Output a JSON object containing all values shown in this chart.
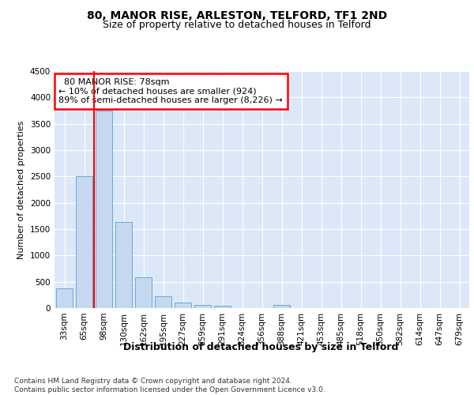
{
  "title_line1": "80, MANOR RISE, ARLESTON, TELFORD, TF1 2ND",
  "title_line2": "Size of property relative to detached houses in Telford",
  "xlabel": "Distribution of detached houses by size in Telford",
  "ylabel": "Number of detached properties",
  "footnote": "Contains HM Land Registry data © Crown copyright and database right 2024.\nContains public sector information licensed under the Open Government Licence v3.0.",
  "bar_labels": [
    "33sqm",
    "65sqm",
    "98sqm",
    "130sqm",
    "162sqm",
    "195sqm",
    "227sqm",
    "259sqm",
    "291sqm",
    "324sqm",
    "356sqm",
    "388sqm",
    "421sqm",
    "453sqm",
    "485sqm",
    "518sqm",
    "550sqm",
    "582sqm",
    "614sqm",
    "647sqm",
    "679sqm"
  ],
  "bar_values": [
    370,
    2500,
    3750,
    1640,
    590,
    225,
    105,
    65,
    50,
    0,
    0,
    55,
    0,
    0,
    0,
    0,
    0,
    0,
    0,
    0,
    0
  ],
  "bar_color": "#c5d8f0",
  "bar_edge_color": "#6aaad4",
  "ylim": [
    0,
    4500
  ],
  "yticks": [
    0,
    500,
    1000,
    1500,
    2000,
    2500,
    3000,
    3500,
    4000,
    4500
  ],
  "red_line_x": 1.5,
  "annotation_box_text": "  80 MANOR RISE: 78sqm  \n← 10% of detached houses are smaller (924)\n89% of semi-detached houses are larger (8,226) →",
  "background_color": "#dce8f8",
  "grid_color": "#ffffff",
  "title1_fontsize": 10,
  "title2_fontsize": 9,
  "xlabel_fontsize": 9,
  "ylabel_fontsize": 8,
  "tick_fontsize": 7.5,
  "annotation_fontsize": 8,
  "footnote_fontsize": 6.5
}
